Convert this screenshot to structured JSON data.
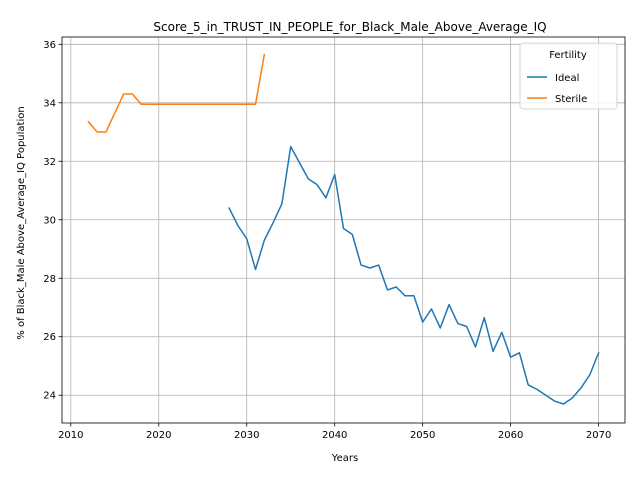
{
  "chart_data": {
    "type": "line",
    "title": "Score_5_in_TRUST_IN_PEOPLE_for_Black_Male_Above_Average_IQ",
    "xlabel": "Years",
    "ylabel": "% of Black_Male Above_Average_IQ Population",
    "xlim": [
      2009,
      2073
    ],
    "ylim": [
      23.05,
      36.25
    ],
    "xticks": [
      2010,
      2020,
      2030,
      2040,
      2050,
      2060,
      2070
    ],
    "yticks": [
      24,
      26,
      28,
      30,
      32,
      34,
      36
    ],
    "grid": true,
    "legend": {
      "title": "Fertility",
      "placement": "top-right"
    },
    "series": [
      {
        "name": "Ideal",
        "color": "#1f77b4",
        "x": [
          2028,
          2029,
          2030,
          2031,
          2032,
          2033,
          2034,
          2035,
          2036,
          2037,
          2038,
          2039,
          2040,
          2041,
          2042,
          2043,
          2044,
          2045,
          2046,
          2047,
          2048,
          2049,
          2050,
          2051,
          2052,
          2053,
          2054,
          2055,
          2056,
          2057,
          2058,
          2059,
          2060,
          2061,
          2062,
          2063,
          2064,
          2065,
          2066,
          2067,
          2068,
          2069,
          2070
        ],
        "y": [
          30.4,
          29.8,
          29.35,
          28.3,
          29.3,
          29.9,
          30.55,
          32.5,
          31.95,
          31.4,
          31.2,
          30.75,
          31.55,
          29.7,
          29.5,
          28.45,
          28.35,
          28.45,
          27.6,
          27.7,
          27.4,
          27.4,
          26.5,
          26.95,
          26.3,
          27.1,
          26.45,
          26.35,
          25.65,
          26.65,
          25.5,
          26.15,
          25.3,
          25.45,
          24.35,
          24.2,
          24.0,
          23.8,
          23.7,
          23.9,
          24.25,
          24.7,
          25.45
        ]
      },
      {
        "name": "Sterile",
        "color": "#ff7f0e",
        "x": [
          2012,
          2013,
          2014,
          2015,
          2016,
          2017,
          2018,
          2019,
          2020,
          2021,
          2022,
          2023,
          2024,
          2025,
          2026,
          2027,
          2028,
          2029,
          2030,
          2031,
          2032
        ],
        "y": [
          33.35,
          33.0,
          33.0,
          33.65,
          34.3,
          34.3,
          33.95,
          33.95,
          33.95,
          33.95,
          33.95,
          33.95,
          33.95,
          33.95,
          33.95,
          33.95,
          33.95,
          33.95,
          33.95,
          33.95,
          35.65
        ]
      }
    ]
  }
}
